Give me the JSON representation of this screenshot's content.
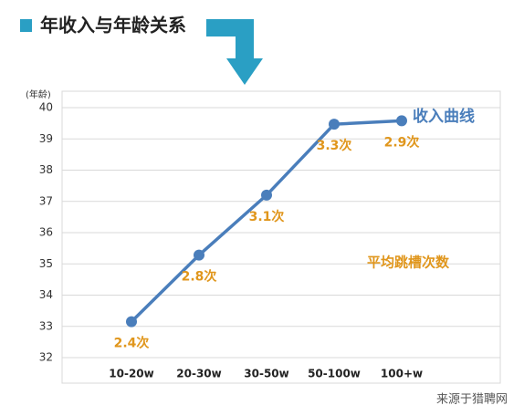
{
  "chart_data": {
    "type": "line",
    "title": "年收入与年龄关系",
    "y_label": "(年龄)",
    "categories": [
      "10-20w",
      "20-30w",
      "30-50w",
      "50-100w",
      "100+w"
    ],
    "series": [
      {
        "name": "收入曲线",
        "color": "#4a7ebb",
        "values": [
          33.15,
          35.28,
          37.2,
          39.47,
          39.58
        ]
      }
    ],
    "point_labels": [
      "2.4次",
      "2.8次",
      "3.1次",
      "3.3次",
      "2.9次"
    ],
    "point_labels_name": "平均跳槽次数",
    "point_label_color": "#e0961c",
    "ylim": [
      32,
      40
    ],
    "yticks": [
      32,
      33,
      34,
      35,
      36,
      37,
      38,
      39,
      40
    ],
    "grid": true,
    "source": "来源于猎聘网"
  }
}
